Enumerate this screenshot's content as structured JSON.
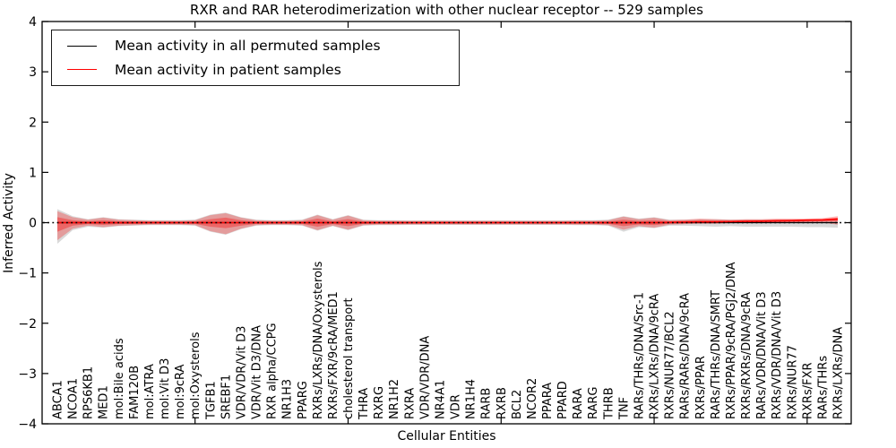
{
  "title": "RXR and RAR heterodimerization with other nuclear receptor -- 529 samples",
  "legend": {
    "items": [
      {
        "label": "Mean activity in all permuted samples",
        "color": "#000000"
      },
      {
        "label": "Mean activity in patient samples",
        "color": "#ff0000"
      }
    ]
  },
  "chart_data": {
    "type": "area",
    "title": "RXR and RAR heterodimerization with other nuclear receptor -- 529 samples",
    "xlabel": "Cellular Entities",
    "ylabel": "Inferred Activity",
    "ylim": [
      -4,
      4
    ],
    "yticks": [
      4,
      3,
      2,
      1,
      0,
      -1,
      -2,
      -3,
      -4
    ],
    "x_major_ticks": [
      10,
      20,
      30,
      40,
      50
    ],
    "grid": false,
    "legend_position": "upper left",
    "categories": [
      "ABCA1",
      "NCOA1",
      "RPS6KB1",
      "MED1",
      "mol:Bile acids",
      "FAM120B",
      "mol:ATRA",
      "mol:Vit D3",
      "mol:9cRA",
      "mol:Oxysterols",
      "TGFB1",
      "SREBF1",
      "VDR/VDR/Vit D3",
      "VDR/Vit D3/DNA",
      "RXR alpha/CCPG",
      "NR1H3",
      "PPARG",
      "RXRs/LXRs/DNA/Oxysterols",
      "RXRs/FXR/9cRA/MED1",
      "cholesterol transport",
      "THRA",
      "RXRG",
      "NR1H2",
      "RXRA",
      "VDR/VDR/DNA",
      "NR4A1",
      "VDR",
      "NR1H4",
      "RARB",
      "RXRB",
      "BCL2",
      "NCOR2",
      "PPARA",
      "PPARD",
      "RARA",
      "RARG",
      "THRB",
      "TNF",
      "RARs/THRs/DNA/Src-1",
      "RXRs/LXRs/DNA/9cRA",
      "RXRs/NUR77/BCL2",
      "RARs/RARs/DNA/9cRA",
      "RXRs/PPAR",
      "RARs/THRs/DNA/SMRT",
      "RXRs/PPAR/9cRA/PGJ2/DNA",
      "RXRs/RXRs/DNA/9cRA",
      "RARs/VDR/DNA/Vit D3",
      "RXRs/VDR/DNA/Vit D3",
      "RXRs/NUR77",
      "RXRs/FXR",
      "RARs/THRs",
      "RXRs/LXRs/DNA"
    ],
    "series": [
      {
        "name": "Mean activity in all permuted samples",
        "color": "#000000",
        "style": "solid",
        "width": 1.3,
        "values": [
          0,
          0,
          0,
          0,
          0,
          0,
          0,
          0,
          0,
          0,
          0,
          0,
          0,
          0,
          0,
          0,
          0,
          0,
          0,
          0,
          0,
          0,
          0,
          0,
          0,
          0,
          0,
          0,
          0,
          0,
          0,
          0,
          0,
          0,
          0,
          0,
          0,
          0,
          0,
          0,
          0,
          0,
          0,
          0,
          0,
          0,
          0,
          0,
          0,
          0,
          0,
          0
        ]
      },
      {
        "name": "Mean activity in patient samples",
        "color": "#ff0000",
        "style": "solid",
        "width": 1.6,
        "values": [
          0,
          0,
          0,
          0,
          0,
          0,
          0,
          0,
          0,
          0,
          0,
          0,
          0,
          0,
          0,
          0,
          0,
          0,
          0,
          0,
          0,
          0,
          0,
          0,
          0,
          0,
          0,
          0,
          0,
          0,
          0,
          0,
          0,
          0,
          0,
          0,
          0,
          0,
          0,
          0,
          0.005,
          0.01,
          0.015,
          0.015,
          0.02,
          0.025,
          0.03,
          0.035,
          0.04,
          0.05,
          0.055,
          0.07
        ]
      },
      {
        "name": "zero-baseline",
        "color": "#000000",
        "style": "dotted",
        "width": 1.6,
        "value": 0
      }
    ],
    "bands": [
      {
        "name": "permuted-samples-range",
        "color": "#8a8a8a",
        "opacity": 0.32,
        "upper": [
          0.27,
          0.13,
          0.07,
          0.11,
          0.07,
          0.06,
          0.05,
          0.05,
          0.05,
          0.06,
          0.16,
          0.2,
          0.11,
          0.06,
          0.05,
          0.05,
          0.06,
          0.16,
          0.07,
          0.15,
          0.06,
          0.05,
          0.05,
          0.045,
          0.045,
          0.045,
          0.045,
          0.045,
          0.045,
          0.045,
          0.045,
          0.045,
          0.045,
          0.045,
          0.05,
          0.05,
          0.06,
          0.13,
          0.08,
          0.11,
          0.06,
          0.06,
          0.07,
          0.07,
          0.06,
          0.06,
          0.06,
          0.06,
          0.06,
          0.06,
          0.06,
          0.08
        ],
        "lower": [
          -0.42,
          -0.15,
          -0.08,
          -0.1,
          -0.07,
          -0.06,
          -0.05,
          -0.05,
          -0.05,
          -0.06,
          -0.18,
          -0.24,
          -0.13,
          -0.06,
          -0.05,
          -0.05,
          -0.06,
          -0.16,
          -0.07,
          -0.15,
          -0.06,
          -0.05,
          -0.05,
          -0.045,
          -0.045,
          -0.045,
          -0.045,
          -0.045,
          -0.045,
          -0.045,
          -0.045,
          -0.045,
          -0.045,
          -0.045,
          -0.05,
          -0.05,
          -0.06,
          -0.18,
          -0.09,
          -0.11,
          -0.06,
          -0.06,
          -0.07,
          -0.08,
          -0.07,
          -0.08,
          -0.08,
          -0.08,
          -0.08,
          -0.09,
          -0.09,
          -0.1
        ]
      },
      {
        "name": "patient-samples-range-outer",
        "color": "#ff0000",
        "opacity": 0.28,
        "upper": [
          0.23,
          0.11,
          0.06,
          0.1,
          0.06,
          0.05,
          0.04,
          0.04,
          0.04,
          0.05,
          0.15,
          0.19,
          0.1,
          0.05,
          0.04,
          0.04,
          0.05,
          0.15,
          0.06,
          0.14,
          0.05,
          0.04,
          0.04,
          0.035,
          0.035,
          0.035,
          0.035,
          0.035,
          0.035,
          0.035,
          0.035,
          0.035,
          0.035,
          0.035,
          0.04,
          0.04,
          0.05,
          0.12,
          0.07,
          0.1,
          0.05,
          0.06,
          0.08,
          0.07,
          0.06,
          0.07,
          0.07,
          0.08,
          0.08,
          0.08,
          0.09,
          0.13
        ],
        "lower": [
          -0.35,
          -0.12,
          -0.06,
          -0.09,
          -0.06,
          -0.05,
          -0.04,
          -0.04,
          -0.04,
          -0.05,
          -0.17,
          -0.23,
          -0.12,
          -0.05,
          -0.04,
          -0.04,
          -0.05,
          -0.15,
          -0.06,
          -0.14,
          -0.05,
          -0.04,
          -0.04,
          -0.035,
          -0.035,
          -0.035,
          -0.035,
          -0.035,
          -0.035,
          -0.035,
          -0.035,
          -0.035,
          -0.035,
          -0.035,
          -0.04,
          -0.04,
          -0.05,
          -0.14,
          -0.07,
          -0.1,
          -0.04,
          -0.03,
          -0.02,
          -0.02,
          -0.01,
          -0.01,
          -0.01,
          0.0,
          0.0,
          0.0,
          0.0,
          -0.04
        ]
      },
      {
        "name": "patient-samples-range-inner",
        "color": "#ff0000",
        "opacity": 0.34,
        "upper": [
          0.11,
          0.05,
          0.03,
          0.05,
          0.03,
          0.025,
          0.02,
          0.02,
          0.02,
          0.025,
          0.07,
          0.1,
          0.05,
          0.025,
          0.02,
          0.02,
          0.025,
          0.08,
          0.03,
          0.07,
          0.025,
          0.02,
          0.02,
          0.018,
          0.018,
          0.018,
          0.018,
          0.018,
          0.018,
          0.018,
          0.018,
          0.018,
          0.018,
          0.018,
          0.02,
          0.02,
          0.025,
          0.06,
          0.035,
          0.05,
          0.03,
          0.035,
          0.05,
          0.045,
          0.04,
          0.05,
          0.05,
          0.06,
          0.06,
          0.065,
          0.07,
          0.1
        ],
        "lower": [
          -0.18,
          -0.06,
          -0.03,
          -0.045,
          -0.03,
          -0.025,
          -0.02,
          -0.02,
          -0.02,
          -0.025,
          -0.08,
          -0.11,
          -0.06,
          -0.025,
          -0.02,
          -0.02,
          -0.025,
          -0.08,
          -0.03,
          -0.07,
          -0.025,
          -0.02,
          -0.02,
          -0.018,
          -0.018,
          -0.018,
          -0.018,
          -0.018,
          -0.018,
          -0.018,
          -0.018,
          -0.018,
          -0.018,
          -0.018,
          -0.02,
          -0.02,
          -0.025,
          -0.07,
          -0.035,
          -0.05,
          -0.02,
          -0.01,
          0.0,
          0.0,
          0.005,
          0.01,
          0.01,
          0.015,
          0.015,
          0.02,
          0.025,
          0.03
        ]
      }
    ]
  }
}
